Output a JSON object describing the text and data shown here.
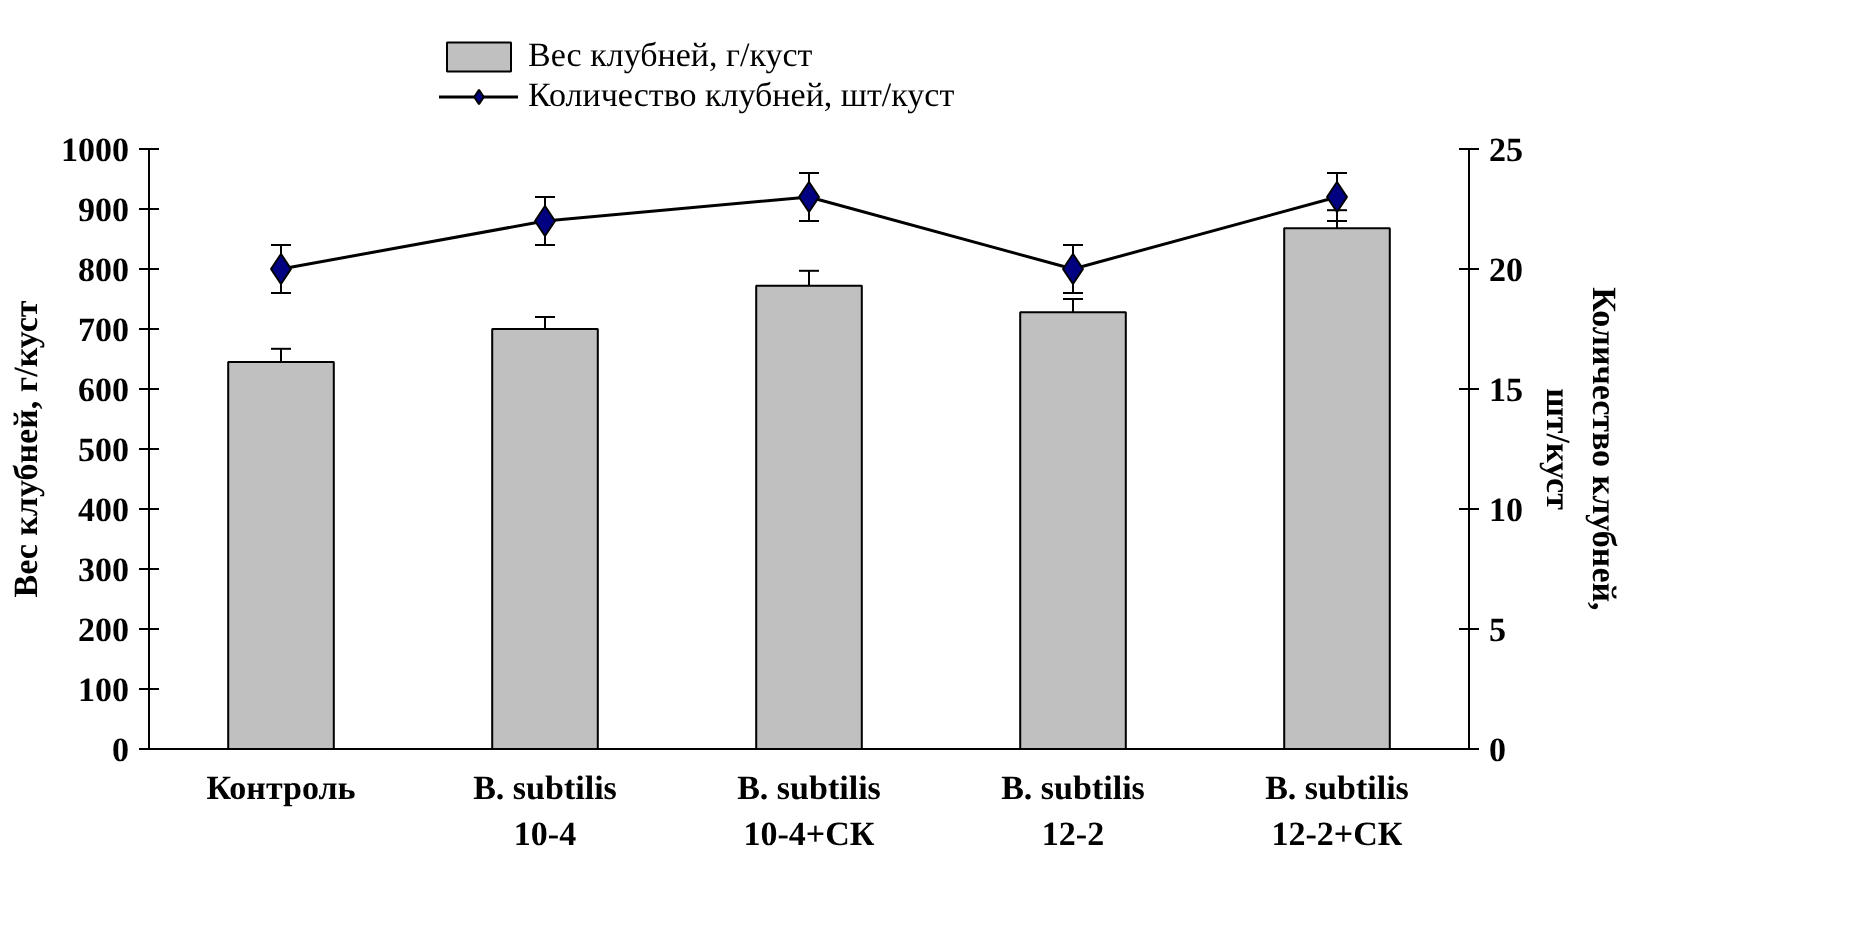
{
  "chart_data": {
    "type": "bar",
    "categories": [
      "Контроль",
      "B. subtilis\n10-4",
      "B. subtilis\n10-4+СК",
      "B. subtilis\n12-2",
      "B. subtilis\n12-2+СК"
    ],
    "series": [
      {
        "name": "Вес клубней, г/куст",
        "color": "#c0c0c0",
        "values": [
          645,
          700,
          772,
          728,
          868
        ],
        "errors": [
          22,
          20,
          25,
          22,
          30
        ]
      },
      {
        "name": "Количество клубней, шт/куст",
        "type": "line",
        "axis": "y2",
        "color": "#000080",
        "marker": "diamond",
        "values": [
          20,
          22,
          23,
          20,
          23
        ],
        "errors": [
          1,
          1,
          1,
          1,
          1
        ]
      }
    ],
    "ylabel": "Вес клубней, г/куст",
    "y2label": "Количество клубней,\nшт/куст",
    "ylim": [
      0,
      1000
    ],
    "yticks": [
      0,
      100,
      200,
      300,
      400,
      500,
      600,
      700,
      800,
      900,
      1000
    ],
    "y2lim": [
      0,
      25
    ],
    "y2ticks": [
      0,
      5,
      10,
      15,
      20,
      25
    ],
    "grid": false,
    "legend": "top left"
  }
}
